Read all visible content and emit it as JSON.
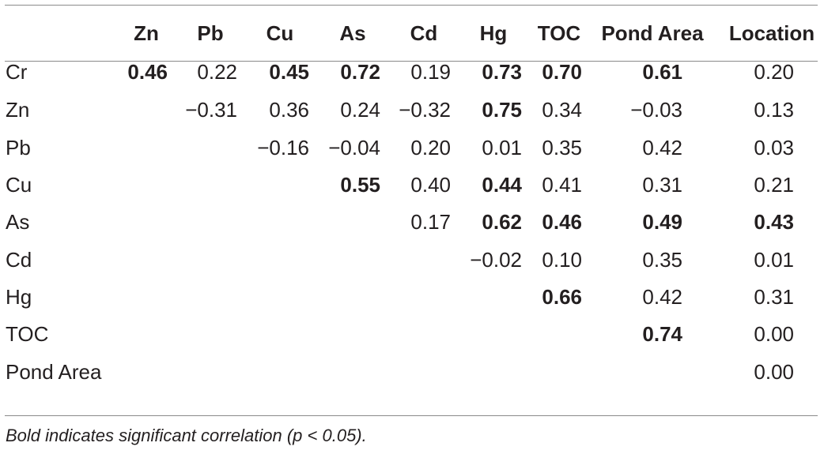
{
  "columns": [
    "Zn",
    "Pb",
    "Cu",
    "As",
    "Cd",
    "Hg",
    "TOC",
    "Pond Area",
    "Location"
  ],
  "rows": [
    {
      "label": "Cr",
      "cells": [
        {
          "v": "0.46",
          "b": true
        },
        {
          "v": "0.22",
          "b": false
        },
        {
          "v": "0.45",
          "b": true
        },
        {
          "v": "0.72",
          "b": true
        },
        {
          "v": "0.19",
          "b": false
        },
        {
          "v": "0.73",
          "b": true
        },
        {
          "v": "0.70",
          "b": true
        },
        {
          "v": "0.61",
          "b": true
        },
        {
          "v": "0.20",
          "b": false
        }
      ]
    },
    {
      "label": "Zn",
      "cells": [
        null,
        {
          "v": "−0.31",
          "b": false
        },
        {
          "v": "0.36",
          "b": false
        },
        {
          "v": "0.24",
          "b": false
        },
        {
          "v": "−0.32",
          "b": false
        },
        {
          "v": "0.75",
          "b": true
        },
        {
          "v": "0.34",
          "b": false
        },
        {
          "v": "−0.03",
          "b": false
        },
        {
          "v": "0.13",
          "b": false
        }
      ]
    },
    {
      "label": "Pb",
      "cells": [
        null,
        null,
        {
          "v": "−0.16",
          "b": false
        },
        {
          "v": "−0.04",
          "b": false
        },
        {
          "v": "0.20",
          "b": false
        },
        {
          "v": "0.01",
          "b": false
        },
        {
          "v": "0.35",
          "b": false
        },
        {
          "v": "0.42",
          "b": false
        },
        {
          "v": "0.03",
          "b": false
        }
      ]
    },
    {
      "label": "Cu",
      "cells": [
        null,
        null,
        null,
        {
          "v": "0.55",
          "b": true
        },
        {
          "v": "0.40",
          "b": false
        },
        {
          "v": "0.44",
          "b": true
        },
        {
          "v": "0.41",
          "b": false
        },
        {
          "v": "0.31",
          "b": false
        },
        {
          "v": "0.21",
          "b": false
        }
      ]
    },
    {
      "label": "As",
      "cells": [
        null,
        null,
        null,
        null,
        {
          "v": "0.17",
          "b": false
        },
        {
          "v": "0.62",
          "b": true
        },
        {
          "v": "0.46",
          "b": true
        },
        {
          "v": "0.49",
          "b": true
        },
        {
          "v": "0.43",
          "b": true
        }
      ]
    },
    {
      "label": "Cd",
      "cells": [
        null,
        null,
        null,
        null,
        null,
        {
          "v": "−0.02",
          "b": false
        },
        {
          "v": "0.10",
          "b": false
        },
        {
          "v": "0.35",
          "b": false
        },
        {
          "v": "0.01",
          "b": false
        }
      ]
    },
    {
      "label": "Hg",
      "cells": [
        null,
        null,
        null,
        null,
        null,
        null,
        {
          "v": "0.66",
          "b": true
        },
        {
          "v": "0.42",
          "b": false
        },
        {
          "v": "0.31",
          "b": false
        }
      ]
    },
    {
      "label": "TOC",
      "cells": [
        null,
        null,
        null,
        null,
        null,
        null,
        null,
        {
          "v": "0.74",
          "b": true
        },
        {
          "v": "0.00",
          "b": false
        }
      ]
    },
    {
      "label": "Pond Area",
      "cells": [
        null,
        null,
        null,
        null,
        null,
        null,
        null,
        null,
        {
          "v": "0.00",
          "b": false
        }
      ]
    }
  ],
  "footnote": "Bold indicates significant correlation (p < 0.05)."
}
